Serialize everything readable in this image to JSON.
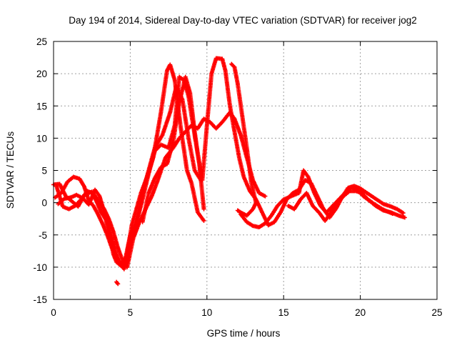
{
  "chart_data": {
    "type": "scatter",
    "title": "Day 194 of 2014, Sidereal Day-to-day VTEC variation (SDTVAR) for receiver jog2",
    "xlabel": "GPS time / hours",
    "ylabel": "SDTVAR / TECUs",
    "xlim": [
      0,
      25
    ],
    "ylim": [
      -15,
      25
    ],
    "x_ticks": [
      0,
      5,
      10,
      15,
      20,
      25
    ],
    "y_ticks": [
      -15,
      -10,
      -5,
      0,
      5,
      10,
      15,
      20,
      25
    ],
    "x_tick_labels": [
      "0",
      "5",
      "10",
      "15",
      "20",
      "25"
    ],
    "y_tick_labels": [
      "-15",
      "-10",
      "-5",
      "0",
      "5",
      "10",
      "15",
      "20",
      "25"
    ],
    "grid": true,
    "marker": "+",
    "marker_color": "#ff0000",
    "series": [
      {
        "name": "s1",
        "points": [
          [
            0.0,
            2.8
          ],
          [
            0.4,
            2.9
          ],
          [
            0.8,
            1.0
          ],
          [
            1.2,
            0.2
          ],
          [
            1.6,
            -0.6
          ],
          [
            2.0,
            1.2
          ],
          [
            2.5,
            1.7
          ],
          [
            2.8,
            0.2
          ],
          [
            3.1,
            -1.5
          ],
          [
            3.4,
            -2.6
          ],
          [
            3.7,
            -5.5
          ],
          [
            3.9,
            -8.0
          ],
          [
            4.1,
            -9.2
          ],
          [
            4.4,
            -9.8
          ],
          [
            4.7,
            -8.5
          ],
          [
            5.0,
            -5.0
          ],
          [
            5.3,
            -3.5
          ],
          [
            5.6,
            -1.0
          ],
          [
            5.9,
            2.5
          ],
          [
            6.2,
            5.0
          ],
          [
            6.6,
            8.5
          ],
          [
            7.1,
            10.5
          ],
          [
            7.6,
            14.0
          ],
          [
            8.0,
            18.0
          ],
          [
            8.4,
            16.0
          ],
          [
            8.8,
            10.0
          ],
          [
            9.2,
            5.0
          ],
          [
            9.6,
            3.5
          ]
        ]
      },
      {
        "name": "s2",
        "points": [
          [
            0.1,
            0.8
          ],
          [
            0.5,
            1.5
          ],
          [
            0.9,
            3.2
          ],
          [
            1.3,
            4.0
          ],
          [
            1.7,
            3.7
          ],
          [
            2.0,
            2.5
          ],
          [
            2.3,
            0.3
          ],
          [
            2.6,
            -0.5
          ],
          [
            2.9,
            -1.8
          ],
          [
            3.2,
            -3.3
          ],
          [
            3.5,
            -5.0
          ],
          [
            3.8,
            -7.0
          ],
          [
            4.1,
            -8.3
          ],
          [
            4.5,
            -10.0
          ],
          [
            4.8,
            -8.0
          ],
          [
            5.1,
            -3.5
          ],
          [
            5.4,
            -1.0
          ],
          [
            5.7,
            1.5
          ],
          [
            6.1,
            4.0
          ],
          [
            6.5,
            7.0
          ],
          [
            7.0,
            14.0
          ],
          [
            7.4,
            20.5
          ],
          [
            7.6,
            21.4
          ],
          [
            7.9,
            19.0
          ],
          [
            8.3,
            11.5
          ],
          [
            8.7,
            5.0
          ],
          [
            9.0,
            3.0
          ],
          [
            9.4,
            -1.5
          ],
          [
            9.8,
            -2.8
          ]
        ]
      },
      {
        "name": "s3",
        "points": [
          [
            0.2,
            2.5
          ],
          [
            0.6,
            -0.6
          ],
          [
            1.0,
            -1.0
          ],
          [
            1.4,
            -0.5
          ],
          [
            1.8,
            0.5
          ],
          [
            2.2,
            1.8
          ],
          [
            2.6,
            1.4
          ],
          [
            3.0,
            0.0
          ],
          [
            3.3,
            -1.0
          ],
          [
            3.6,
            -2.5
          ],
          [
            3.9,
            -4.5
          ],
          [
            4.2,
            -7.0
          ],
          [
            4.5,
            -9.0
          ],
          [
            4.8,
            -10.0
          ],
          [
            5.2,
            -5.5
          ],
          [
            5.6,
            -3.0
          ],
          [
            6.0,
            -1.0
          ],
          [
            6.4,
            1.0
          ],
          [
            6.8,
            3.5
          ],
          [
            7.3,
            7.0
          ],
          [
            7.8,
            8.5
          ],
          [
            8.2,
            10.0
          ],
          [
            8.6,
            11.0
          ],
          [
            9.0,
            12.0
          ],
          [
            9.4,
            11.5
          ],
          [
            9.8,
            13.0
          ],
          [
            10.2,
            12.5
          ],
          [
            10.6,
            11.5
          ],
          [
            11.0,
            12.5
          ],
          [
            11.5,
            14.0
          ],
          [
            11.8,
            13.0
          ],
          [
            12.2,
            10.5
          ],
          [
            12.6,
            7.0
          ],
          [
            13.0,
            3.5
          ],
          [
            13.4,
            1.5
          ],
          [
            13.8,
            1.0
          ]
        ]
      },
      {
        "name": "s4",
        "points": [
          [
            0.3,
            -0.2
          ],
          [
            0.7,
            0.6
          ],
          [
            1.1,
            0.8
          ],
          [
            1.5,
            1.2
          ],
          [
            1.9,
            0.7
          ],
          [
            2.3,
            -0.3
          ],
          [
            2.7,
            2.0
          ],
          [
            3.0,
            1.0
          ],
          [
            3.4,
            -2.2
          ],
          [
            3.8,
            -5.5
          ],
          [
            4.2,
            -9.0
          ],
          [
            4.6,
            -10.3
          ],
          [
            5.0,
            -6.0
          ],
          [
            5.4,
            -3.2
          ],
          [
            5.8,
            0.5
          ],
          [
            6.2,
            4.5
          ],
          [
            6.6,
            8.0
          ],
          [
            7.0,
            9.0
          ],
          [
            7.5,
            8.5
          ],
          [
            7.9,
            12.0
          ],
          [
            8.2,
            19.5
          ],
          [
            8.5,
            19.0
          ],
          [
            8.8,
            16.5
          ],
          [
            9.1,
            12.0
          ],
          [
            9.4,
            7.5
          ],
          [
            9.7,
            3.5
          ],
          [
            10.0,
            12.0
          ],
          [
            10.3,
            20.0
          ],
          [
            10.6,
            22.4
          ],
          [
            11.0,
            22.3
          ],
          [
            11.2,
            20.5
          ],
          [
            11.5,
            15.0
          ],
          [
            11.8,
            11.0
          ],
          [
            12.1,
            7.0
          ],
          [
            12.4,
            4.0
          ],
          [
            12.8,
            1.8
          ],
          [
            13.2,
            0.5
          ],
          [
            13.6,
            -1.5
          ],
          [
            14.0,
            -3.5
          ],
          [
            14.4,
            -3.0
          ],
          [
            14.8,
            -1.5
          ],
          [
            15.2,
            0.5
          ],
          [
            15.6,
            1.5
          ],
          [
            16.0,
            2.0
          ],
          [
            16.4,
            3.5
          ],
          [
            16.8,
            3.0
          ],
          [
            17.2,
            1.0
          ],
          [
            17.6,
            -1.0
          ],
          [
            18.0,
            -2.3
          ],
          [
            18.4,
            -1.0
          ],
          [
            18.8,
            0.8
          ],
          [
            19.2,
            2.3
          ],
          [
            19.6,
            2.6
          ],
          [
            20.0,
            2.2
          ],
          [
            20.5,
            1.4
          ],
          [
            21.0,
            0.6
          ],
          [
            21.5,
            -0.2
          ],
          [
            22.0,
            -0.6
          ],
          [
            22.4,
            -1.0
          ],
          [
            22.8,
            -1.6
          ]
        ]
      },
      {
        "name": "s5",
        "points": [
          [
            4.1,
            -12.3
          ],
          [
            4.2,
            -12.6
          ]
        ]
      },
      {
        "name": "s6",
        "points": [
          [
            5.8,
            -3.0
          ],
          [
            6.2,
            1.5
          ],
          [
            6.6,
            3.8
          ],
          [
            7.0,
            5.5
          ],
          [
            7.4,
            6.0
          ],
          [
            7.8,
            9.5
          ],
          [
            8.2,
            15.5
          ],
          [
            8.6,
            19.5
          ],
          [
            8.9,
            17.0
          ],
          [
            9.2,
            11.0
          ],
          [
            9.5,
            6.0
          ],
          [
            9.8,
            -1.0
          ]
        ]
      },
      {
        "name": "s7",
        "points": [
          [
            11.6,
            21.5
          ],
          [
            11.8,
            21.0
          ],
          [
            12.0,
            18.5
          ],
          [
            12.3,
            13.5
          ],
          [
            12.6,
            8.5
          ],
          [
            12.9,
            3.0
          ],
          [
            13.2,
            0.0
          ],
          [
            13.0,
            -1.0
          ],
          [
            12.6,
            -2.0
          ],
          [
            12.2,
            -1.5
          ],
          [
            12.0,
            -1.2
          ]
        ]
      },
      {
        "name": "s8",
        "points": [
          [
            12.2,
            -1.8
          ],
          [
            12.6,
            -3.0
          ],
          [
            13.0,
            -3.6
          ],
          [
            13.4,
            -3.8
          ],
          [
            13.8,
            -3.2
          ],
          [
            14.2,
            -2.0
          ],
          [
            14.6,
            -0.5
          ],
          [
            15.0,
            0.5
          ],
          [
            15.5,
            1.0
          ],
          [
            16.0,
            1.5
          ],
          [
            16.3,
            5.0
          ],
          [
            16.6,
            4.0
          ],
          [
            17.0,
            1.5
          ],
          [
            17.4,
            -0.5
          ],
          [
            17.8,
            -1.5
          ],
          [
            18.2,
            -0.5
          ],
          [
            18.6,
            0.5
          ],
          [
            19.0,
            1.5
          ],
          [
            19.4,
            2.4
          ],
          [
            19.8,
            2.0
          ],
          [
            20.2,
            1.0
          ],
          [
            20.6,
            0.3
          ],
          [
            21.0,
            -0.5
          ],
          [
            21.5,
            -1.2
          ],
          [
            22.0,
            -1.5
          ],
          [
            22.5,
            -2.0
          ],
          [
            22.9,
            -2.3
          ]
        ]
      },
      {
        "name": "s9",
        "points": [
          [
            15.3,
            -0.5
          ],
          [
            15.7,
            -1.0
          ],
          [
            16.1,
            0.5
          ],
          [
            16.5,
            1.5
          ],
          [
            16.9,
            -0.5
          ],
          [
            17.3,
            -1.5
          ],
          [
            17.7,
            -2.8
          ],
          [
            18.1,
            -1.5
          ],
          [
            18.5,
            0.0
          ],
          [
            18.9,
            1.0
          ],
          [
            19.3,
            1.8
          ],
          [
            19.7,
            1.8
          ],
          [
            20.1,
            1.5
          ],
          [
            20.5,
            0.5
          ],
          [
            20.9,
            -0.2
          ],
          [
            21.3,
            -0.8
          ],
          [
            21.7,
            -1.3
          ],
          [
            22.1,
            -1.7
          ]
        ]
      }
    ]
  }
}
